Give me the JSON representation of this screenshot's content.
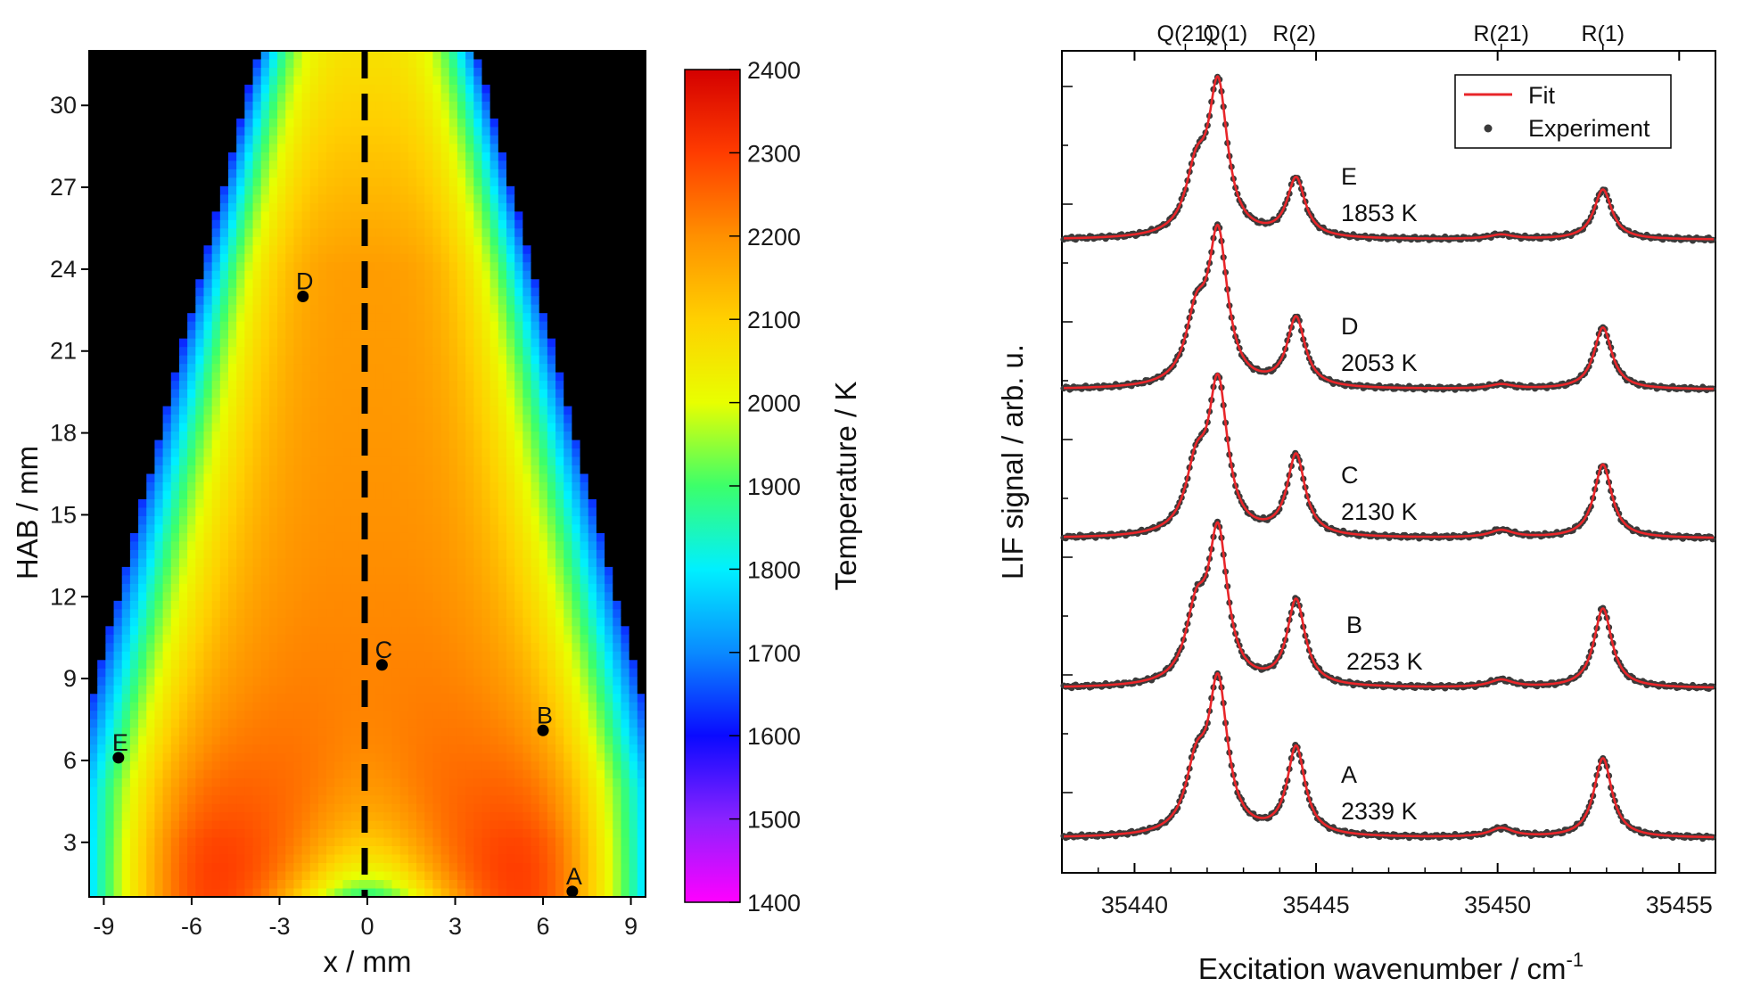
{
  "chart_data": [
    {
      "type": "heatmap",
      "xlabel": "x / mm",
      "ylabel": "HAB / mm",
      "colorbar_label": "Temperature / K",
      "xlim": [
        -9.5,
        9.5
      ],
      "ylim": [
        1,
        32
      ],
      "x_ticks": [
        -9,
        -6,
        -3,
        0,
        3,
        6,
        9
      ],
      "y_ticks": [
        3,
        6,
        9,
        12,
        15,
        18,
        21,
        24,
        27,
        30
      ],
      "colorbar_range": [
        1400,
        2400
      ],
      "colorbar_ticks": [
        1400,
        1500,
        1600,
        1700,
        1800,
        1900,
        2000,
        2100,
        2200,
        2300,
        2400
      ],
      "colormap": [
        "#ff00ff",
        "#8a22ff",
        "#0a0aff",
        "#0a8aff",
        "#00f0ff",
        "#3cff6a",
        "#e8ff00",
        "#ffd000",
        "#ff9000",
        "#ff3c00",
        "#d40000"
      ],
      "centerline_x": 0,
      "points": [
        {
          "label": "A",
          "x": 7.0,
          "y": 1.2
        },
        {
          "label": "B",
          "x": 6.0,
          "y": 7.1
        },
        {
          "label": "C",
          "x": 0.5,
          "y": 9.5
        },
        {
          "label": "D",
          "x": -2.2,
          "y": 23.0
        },
        {
          "label": "E",
          "x": -8.5,
          "y": 6.1
        }
      ]
    },
    {
      "type": "line",
      "xlabel": "Excitation wavenumber / cm",
      "xlabel_sup": "-1",
      "ylabel": "LIF signal / arb. u.",
      "xlim": [
        35438,
        35456
      ],
      "x_ticks": [
        35440,
        35445,
        35450,
        35455
      ],
      "top_labels": [
        {
          "text": "Q(21)",
          "x": 35441.4
        },
        {
          "text": "Q(1)",
          "x": 35442.5
        },
        {
          "text": "R(2)",
          "x": 35444.4
        },
        {
          "text": "R(21)",
          "x": 35450.1
        },
        {
          "text": "R(1)",
          "x": 35452.9
        }
      ],
      "legend": {
        "position": "top-right",
        "entries": [
          "Fit",
          "Experiment"
        ]
      },
      "series_colors": {
        "Fit": "#e8262a",
        "Experiment": "#3a3a3a"
      },
      "series": [
        {
          "label": "A",
          "temperature": "2339 K",
          "peaks": {
            "Q1": 1.0,
            "Q21": 0.42,
            "R2": 0.6,
            "R21": 0.06,
            "R1": 0.54
          }
        },
        {
          "label": "B",
          "temperature": "2253 K",
          "peaks": {
            "Q1": 1.0,
            "Q21": 0.45,
            "R2": 0.58,
            "R21": 0.05,
            "R1": 0.54
          }
        },
        {
          "label": "C",
          "temperature": "2130 K",
          "peaks": {
            "Q1": 1.0,
            "Q21": 0.42,
            "R2": 0.55,
            "R21": 0.05,
            "R1": 0.5
          }
        },
        {
          "label": "D",
          "temperature": "2053 K",
          "peaks": {
            "Q1": 1.0,
            "Q21": 0.43,
            "R2": 0.47,
            "R21": 0.03,
            "R1": 0.42
          }
        },
        {
          "label": "E",
          "temperature": "1853 K",
          "peaks": {
            "Q1": 1.0,
            "Q21": 0.4,
            "R2": 0.4,
            "R21": 0.03,
            "R1": 0.34
          }
        }
      ]
    }
  ]
}
